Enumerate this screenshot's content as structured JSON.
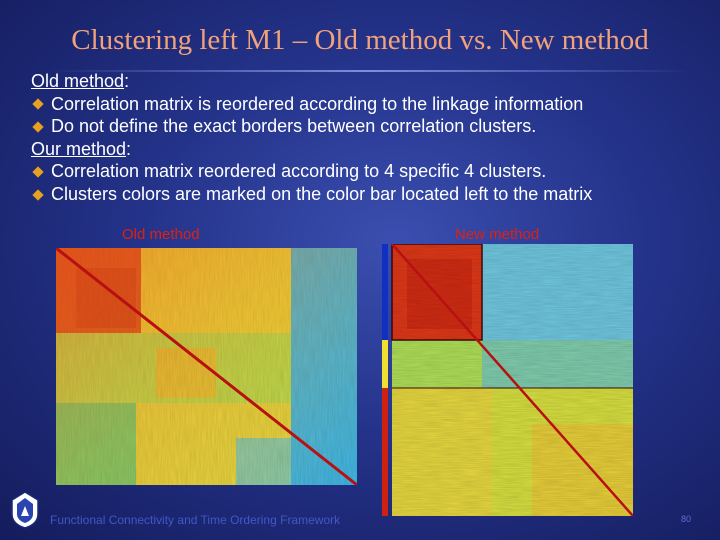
{
  "slide": {
    "title": "Clustering left M1 – Old method vs. New method",
    "old_heading": "Old method",
    "old_heading_colon": ":",
    "old_bullets": [
      "Correlation matrix is reordered according to the linkage information",
      "Do not define the exact borders between correlation clusters."
    ],
    "our_heading": "Our method",
    "our_heading_colon": ":",
    "our_bullets": [
      "Correlation matrix reordered according to 4 specific 4 clusters.",
      "Clusters colors are marked on the color bar located left to the matrix"
    ],
    "caption_old": "Old method",
    "caption_new": "New method",
    "footer": "Functional Connectivity and Time Ordering Framework",
    "page_number": "80"
  },
  "colors": {
    "title": "#f2a27a",
    "caption": "#e02010",
    "bullet": "#e8a020",
    "footer": "#4057c8",
    "cluster_bar": [
      "#1030c0",
      "#f0e030",
      "#d02010"
    ]
  },
  "icons": {
    "bullet": "diamond-bullet-icon",
    "logo": "university-logo-icon"
  }
}
